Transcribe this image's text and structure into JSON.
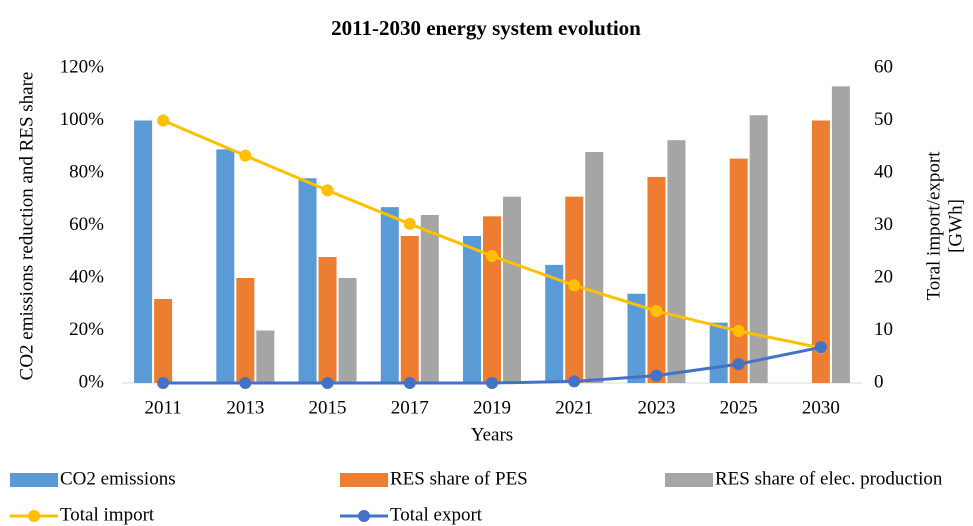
{
  "chart_data": {
    "type": "bar",
    "title": "2011-2030 energy system evolution",
    "xlabel": "Years",
    "ylabel": "CO2 emissions reduction and RES share",
    "y2label": [
      "Toral import/export",
      "[GWh]"
    ],
    "categories": [
      "2011",
      "2013",
      "2015",
      "2017",
      "2019",
      "2021",
      "2023",
      "2025",
      "2030"
    ],
    "ylim": [
      0,
      120
    ],
    "yticks": [
      {
        "value": 0,
        "label": "0%"
      },
      {
        "value": 20,
        "label": "20%"
      },
      {
        "value": 40,
        "label": "40%"
      },
      {
        "value": 60,
        "label": "60%"
      },
      {
        "value": 80,
        "label": "80%"
      },
      {
        "value": 100,
        "label": "100%"
      },
      {
        "value": 120,
        "label": "120%"
      }
    ],
    "y2lim": [
      0,
      60
    ],
    "y2ticks": [
      0,
      10,
      20,
      30,
      40,
      50,
      60
    ],
    "grid": false,
    "legend": "bottom",
    "series": [
      {
        "name": "CO2 emissions",
        "type": "bar",
        "color": "#5b9bd5",
        "values": [
          100,
          89,
          78,
          67,
          56,
          45,
          34,
          23,
          0
        ]
      },
      {
        "name": "RES share of PES",
        "type": "bar",
        "color": "#ed7d31",
        "values": [
          32,
          40,
          48,
          56,
          63.5,
          71,
          78.5,
          85.5,
          100
        ]
      },
      {
        "name": "RES share of elec. production",
        "type": "bar",
        "color": "#a5a5a5",
        "values": [
          0,
          20,
          40,
          64,
          71,
          88,
          92.5,
          102,
          113
        ]
      },
      {
        "name": "Total import",
        "type": "line",
        "axis": "y2",
        "color": "#ffc000",
        "values": [
          50,
          43.3,
          36.7,
          30.3,
          24.2,
          18.6,
          13.7,
          9.9,
          6.7
        ]
      },
      {
        "name": "Total export",
        "type": "line",
        "axis": "y2",
        "color": "#4472c4",
        "values": [
          0,
          0,
          0,
          0,
          0,
          0.3,
          1.4,
          3.6,
          6.8
        ]
      }
    ]
  }
}
